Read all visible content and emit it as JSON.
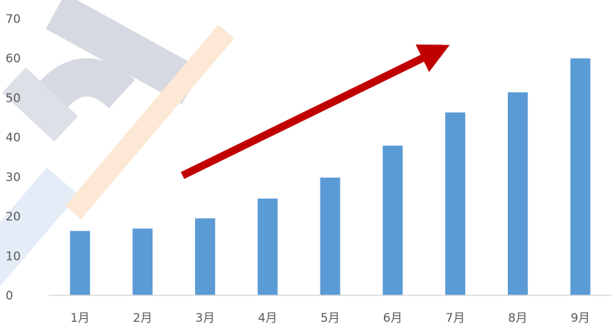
{
  "chart_data": {
    "type": "bar",
    "categories": [
      "1月",
      "2月",
      "3月",
      "4月",
      "5月",
      "6月",
      "7月",
      "8月",
      "9月"
    ],
    "series": [
      {
        "values": [
          16.3,
          16.9,
          19.5,
          24.5,
          29.8,
          37.9,
          46.3,
          51.4,
          60.0
        ]
      }
    ],
    "yticks": [
      "0",
      "10",
      "20",
      "30",
      "40",
      "50",
      "60",
      "70"
    ],
    "ylim": [
      0,
      70
    ],
    "grid": false,
    "legend": "none",
    "annotations": [
      {
        "kind": "trend-arrow",
        "direction": "up-right"
      }
    ],
    "colors": {
      "bar": "#5b9bd5",
      "arrow": "#c00000",
      "axis": "#d9d9d9",
      "tick_text": "#595959",
      "watermark_gray": "#c9cdd8",
      "watermark_blue": "#dbe6f5",
      "watermark_orange": "#fbe1c6"
    }
  }
}
